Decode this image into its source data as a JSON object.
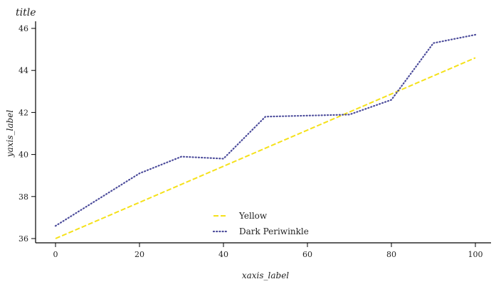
{
  "chart_data": {
    "type": "line",
    "title": "title",
    "xlabel": "xaxis_label",
    "ylabel": "yaxis_label",
    "xlim": [
      0,
      100
    ],
    "ylim": [
      36,
      46
    ],
    "xticks": [
      0,
      20,
      40,
      60,
      80,
      100
    ],
    "yticks": [
      36,
      38,
      40,
      42,
      44,
      46
    ],
    "grid": false,
    "legend_position": "bottom-center",
    "series": [
      {
        "name": "Yellow",
        "color": "#f5e11a",
        "style": "dashed",
        "x": [
          0,
          100
        ],
        "y": [
          36.0,
          44.6
        ]
      },
      {
        "name": "Dark Periwinkle",
        "color": "#4b4b9a",
        "style": "dotted",
        "x": [
          0,
          20,
          30,
          40,
          50,
          70,
          80,
          90,
          100
        ],
        "y": [
          36.6,
          39.1,
          39.9,
          39.8,
          41.8,
          41.9,
          42.6,
          45.3,
          45.7
        ]
      }
    ]
  }
}
